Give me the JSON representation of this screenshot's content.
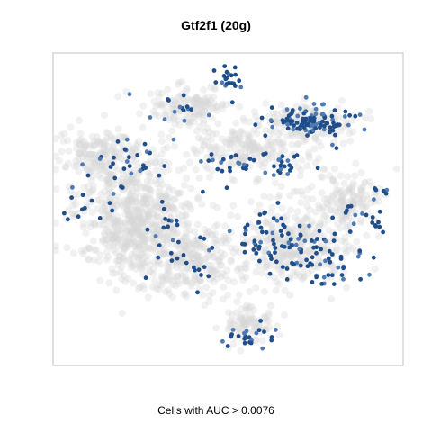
{
  "chart_data": {
    "type": "scatter",
    "title": "Gtf2f1 (20g)",
    "xlabel": "Cells with AUC > 0.0076",
    "ylabel": "",
    "axes_shown": false,
    "grid": false,
    "legend": "none",
    "colors": {
      "background_cells": "#d6d6d6",
      "active_cells": "#1f4e8a",
      "active_cells_light": "#4f7ab3",
      "frame": "#c0c0c0"
    },
    "series": [
      {
        "name": "",
        "role": "inactive",
        "clusters": [
          {
            "center": [
              150,
              240
            ],
            "spread": [
              55,
              55
            ],
            "count": 650
          },
          {
            "center": [
              210,
              290
            ],
            "spread": [
              45,
              35
            ],
            "count": 250
          },
          {
            "center": [
              330,
              270
            ],
            "spread": [
              55,
              40
            ],
            "count": 350
          },
          {
            "center": [
              275,
              165
            ],
            "spread": [
              60,
              22
            ],
            "count": 200
          },
          {
            "center": [
              335,
              135
            ],
            "spread": [
              45,
              18
            ],
            "count": 140
          },
          {
            "center": [
              210,
              120
            ],
            "spread": [
              35,
              20
            ],
            "count": 140
          },
          {
            "center": [
              390,
              220
            ],
            "spread": [
              30,
              25
            ],
            "count": 120
          },
          {
            "center": [
              275,
              360
            ],
            "spread": [
              25,
              20
            ],
            "count": 90
          },
          {
            "center": [
              110,
              170
            ],
            "spread": [
              35,
              20
            ],
            "count": 150
          }
        ]
      },
      {
        "name": "",
        "role": "active",
        "clusters": [
          {
            "center": [
              345,
              135
            ],
            "spread": [
              40,
              15
            ],
            "count": 110
          },
          {
            "center": [
              315,
              185
            ],
            "spread": [
              30,
              15
            ],
            "count": 25
          },
          {
            "center": [
              255,
              88
            ],
            "spread": [
              15,
              12
            ],
            "count": 22
          },
          {
            "center": [
              195,
              120
            ],
            "spread": [
              25,
              15
            ],
            "count": 15
          },
          {
            "center": [
              150,
              180
            ],
            "spread": [
              30,
              20
            ],
            "count": 25
          },
          {
            "center": [
              105,
              210
            ],
            "spread": [
              25,
              30
            ],
            "count": 18
          },
          {
            "center": [
              250,
              185
            ],
            "spread": [
              30,
              20
            ],
            "count": 20
          },
          {
            "center": [
              305,
              265
            ],
            "spread": [
              45,
              30
            ],
            "count": 70
          },
          {
            "center": [
              370,
              295
            ],
            "spread": [
              35,
              25
            ],
            "count": 45
          },
          {
            "center": [
              270,
              375
            ],
            "spread": [
              25,
              12
            ],
            "count": 25
          },
          {
            "center": [
              215,
              290
            ],
            "spread": [
              30,
              35
            ],
            "count": 20
          },
          {
            "center": [
              400,
              240
            ],
            "spread": [
              25,
              20
            ],
            "count": 18
          },
          {
            "center": [
              180,
              255
            ],
            "spread": [
              25,
              25
            ],
            "count": 12
          },
          {
            "center": [
              425,
              215
            ],
            "spread": [
              8,
              6
            ],
            "count": 5
          }
        ]
      }
    ]
  }
}
